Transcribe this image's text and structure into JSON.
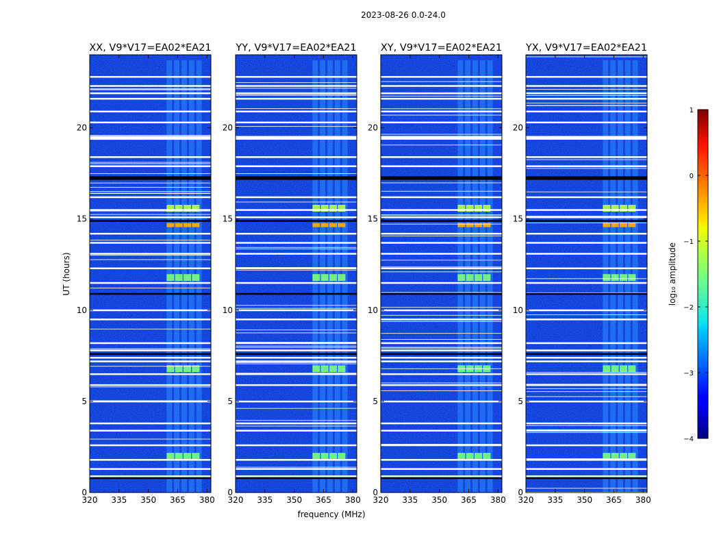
{
  "figure": {
    "suptitle": "2023-08-26 0.0-24.0"
  },
  "chart_data": {
    "type": "heatmap",
    "shared_axes": {
      "xlabel": "frequency (MHz)",
      "ylabel": "UT (hours)",
      "xlim": [
        320,
        382
      ],
      "ylim": [
        0,
        24
      ],
      "xticks": [
        320,
        335,
        350,
        365,
        380
      ],
      "yticks": [
        0,
        5,
        10,
        15,
        20
      ]
    },
    "panels": [
      {
        "title": "XX, V9*V17=EA02*EA21",
        "polarization": "XX",
        "rfi_band_mhz": [
          359,
          378
        ]
      },
      {
        "title": "YY, V9*V17=EA02*EA21",
        "polarization": "YY",
        "rfi_band_mhz": [
          359,
          378
        ]
      },
      {
        "title": "XY, V9*V17=EA02*EA21",
        "polarization": "XY",
        "rfi_band_mhz": [
          359,
          378
        ]
      },
      {
        "title": "YX, V9*V17=EA02*EA21",
        "polarization": "YX",
        "rfi_band_mhz": [
          359,
          378
        ]
      }
    ],
    "features": {
      "flagged_white_rows_hours": [
        0.9,
        1.3,
        1.8,
        2.6,
        3.4,
        3.8,
        5.0,
        5.9,
        6.5,
        7.2,
        7.4,
        7.8,
        8.2,
        9.5,
        10.0,
        11.5,
        12.3,
        13.1,
        13.7,
        14.2,
        15.1,
        15.5,
        16.2,
        17.9,
        18.4,
        19.4,
        20.3,
        20.9,
        21.6,
        21.9,
        22.3,
        22.8
      ],
      "black_rows_hours": [
        0.8,
        7.6,
        10.9,
        14.9,
        17.2,
        17.3
      ],
      "bright_rfi_rows_hours": [
        14.7,
        15.7,
        11.9,
        2.1,
        6.9
      ]
    },
    "colorbar": {
      "label": "log₁₀ amplitude",
      "colormap": "jet",
      "vmin": -4,
      "vmax": 1,
      "ticks": [
        1,
        0,
        -1,
        -2,
        -3,
        -4
      ],
      "tick_labels": [
        "1",
        "0",
        "−1",
        "−2",
        "−3",
        "−4"
      ]
    }
  }
}
